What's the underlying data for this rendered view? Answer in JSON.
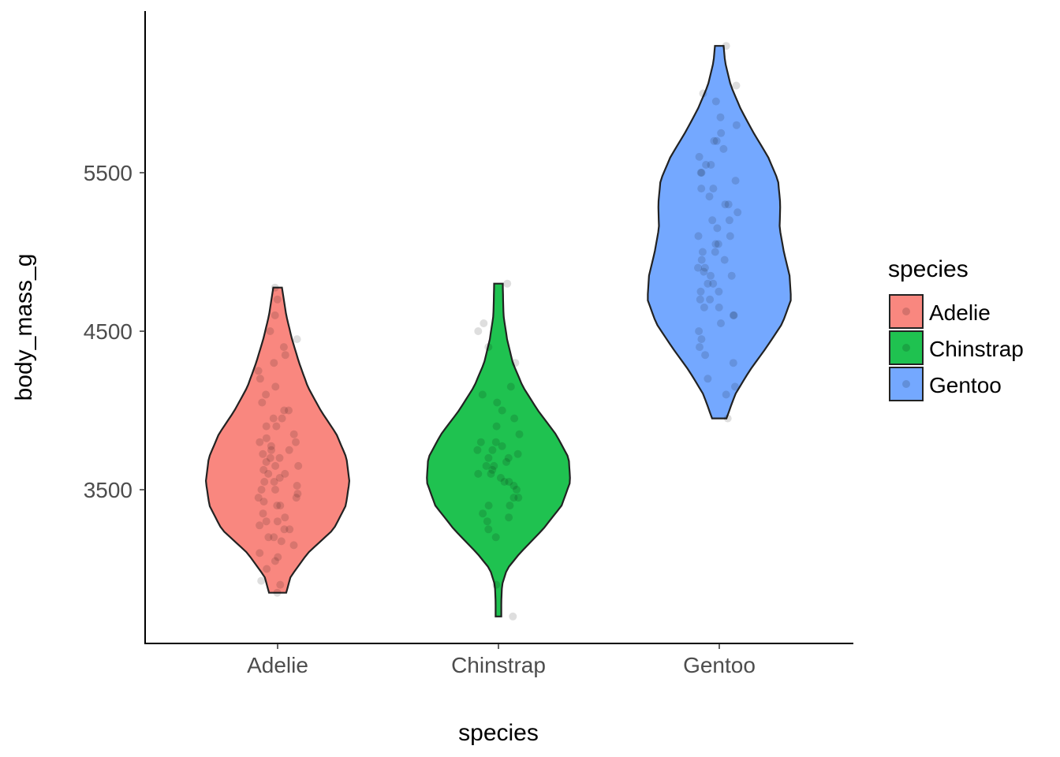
{
  "chart_data": {
    "type": "violin",
    "xlabel": "species",
    "ylabel": "body_mass_g",
    "categories": [
      "Adelie",
      "Chinstrap",
      "Gentoo"
    ],
    "ylim": [
      2530,
      6520
    ],
    "yticks": [
      3500,
      4500,
      5500
    ],
    "ytick_labels": [
      "3500",
      "4500",
      "5500"
    ],
    "grid": false,
    "legend": {
      "title": "species",
      "position": "right",
      "entries": [
        "Adelie",
        "Chinstrap",
        "Gentoo"
      ]
    },
    "colors": {
      "Adelie": "#F8766D",
      "Chinstrap": "#00BA38",
      "Gentoo": "#619CFF"
    },
    "series": [
      {
        "name": "Adelie",
        "min": 2850,
        "max": 4775,
        "density_profile": [
          [
            2850,
            0.12
          ],
          [
            2950,
            0.18
          ],
          [
            3100,
            0.42
          ],
          [
            3250,
            0.78
          ],
          [
            3400,
            0.95
          ],
          [
            3550,
            1.0
          ],
          [
            3700,
            0.96
          ],
          [
            3850,
            0.82
          ],
          [
            4000,
            0.6
          ],
          [
            4150,
            0.42
          ],
          [
            4300,
            0.3
          ],
          [
            4450,
            0.2
          ],
          [
            4600,
            0.12
          ],
          [
            4775,
            0.06
          ]
        ],
        "points": [
          2850,
          2900,
          2925,
          3000,
          3050,
          3075,
          3100,
          3150,
          3175,
          3200,
          3200,
          3250,
          3250,
          3275,
          3300,
          3300,
          3325,
          3350,
          3400,
          3400,
          3425,
          3450,
          3450,
          3475,
          3500,
          3500,
          3525,
          3550,
          3550,
          3575,
          3600,
          3600,
          3625,
          3650,
          3650,
          3675,
          3700,
          3700,
          3725,
          3750,
          3750,
          3775,
          3800,
          3800,
          3825,
          3850,
          3900,
          3900,
          3950,
          3950,
          4000,
          4000,
          4050,
          4100,
          4150,
          4200,
          4250,
          4300,
          4350,
          4400,
          4450,
          4500,
          4600,
          4700,
          4775
        ]
      },
      {
        "name": "Chinstrap",
        "min": 2700,
        "max": 4800,
        "density_profile": [
          [
            2700,
            0.04
          ],
          [
            2800,
            0.04
          ],
          [
            2900,
            0.05
          ],
          [
            3000,
            0.12
          ],
          [
            3100,
            0.3
          ],
          [
            3250,
            0.62
          ],
          [
            3400,
            0.88
          ],
          [
            3550,
            1.0
          ],
          [
            3700,
            0.98
          ],
          [
            3850,
            0.8
          ],
          [
            4000,
            0.55
          ],
          [
            4150,
            0.34
          ],
          [
            4300,
            0.2
          ],
          [
            4450,
            0.12
          ],
          [
            4600,
            0.07
          ],
          [
            4800,
            0.06
          ]
        ],
        "points": [
          2700,
          2900,
          3200,
          3250,
          3300,
          3325,
          3350,
          3400,
          3400,
          3450,
          3450,
          3500,
          3525,
          3550,
          3550,
          3575,
          3600,
          3600,
          3625,
          3650,
          3650,
          3675,
          3700,
          3700,
          3725,
          3750,
          3750,
          3775,
          3800,
          3800,
          3850,
          3900,
          3950,
          4000,
          4050,
          4100,
          4150,
          4300,
          4400,
          4500,
          4550,
          4800
        ]
      },
      {
        "name": "Gentoo",
        "min": 3950,
        "max": 6300,
        "density_profile": [
          [
            3950,
            0.1
          ],
          [
            4100,
            0.22
          ],
          [
            4250,
            0.42
          ],
          [
            4400,
            0.66
          ],
          [
            4550,
            0.88
          ],
          [
            4700,
            1.0
          ],
          [
            4850,
            0.98
          ],
          [
            5000,
            0.9
          ],
          [
            5150,
            0.84
          ],
          [
            5300,
            0.85
          ],
          [
            5450,
            0.82
          ],
          [
            5600,
            0.68
          ],
          [
            5750,
            0.48
          ],
          [
            5900,
            0.3
          ],
          [
            6050,
            0.16
          ],
          [
            6200,
            0.08
          ],
          [
            6300,
            0.06
          ]
        ],
        "points": [
          3950,
          4100,
          4150,
          4200,
          4300,
          4350,
          4400,
          4450,
          4500,
          4550,
          4600,
          4600,
          4650,
          4650,
          4700,
          4700,
          4750,
          4750,
          4800,
          4800,
          4850,
          4850,
          4875,
          4900,
          4900,
          4950,
          4950,
          5000,
          5000,
          5050,
          5050,
          5100,
          5100,
          5150,
          5200,
          5200,
          5250,
          5300,
          5300,
          5350,
          5400,
          5400,
          5450,
          5500,
          5500,
          5550,
          5550,
          5600,
          5650,
          5700,
          5700,
          5750,
          5800,
          5850,
          5950,
          6000,
          6050,
          6300
        ]
      }
    ]
  }
}
